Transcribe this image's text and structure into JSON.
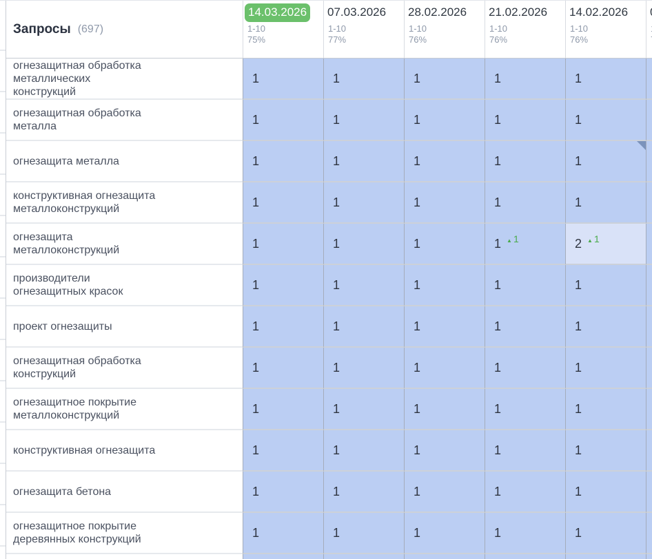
{
  "header": {
    "title": "Запросы",
    "count": "(697)"
  },
  "columns": [
    {
      "date": "14.03.2026",
      "selected": true,
      "range": "1-10",
      "percent": "75%"
    },
    {
      "date": "07.03.2026",
      "selected": false,
      "range": "1-10",
      "percent": "77%"
    },
    {
      "date": "28.02.2026",
      "selected": false,
      "range": "1-10",
      "percent": "76%"
    },
    {
      "date": "21.02.2026",
      "selected": false,
      "range": "1-10",
      "percent": "76%"
    },
    {
      "date": "14.02.2026",
      "selected": false,
      "range": "1-10",
      "percent": "76%"
    }
  ],
  "partial_column": {
    "date_fragment": "0",
    "range_fragment": "1",
    "percent_fragment": "7"
  },
  "rows": [
    {
      "keyword": "огнезащитная обработка\nметаллических\nконструкций",
      "cells": [
        {
          "value": "1"
        },
        {
          "value": "1"
        },
        {
          "value": "1"
        },
        {
          "value": "1"
        },
        {
          "value": "1"
        }
      ]
    },
    {
      "keyword": "огнезащитная обработка\nметалла",
      "cells": [
        {
          "value": "1"
        },
        {
          "value": "1"
        },
        {
          "value": "1"
        },
        {
          "value": "1"
        },
        {
          "value": "1"
        }
      ]
    },
    {
      "keyword": "огнезащита металла",
      "cells": [
        {
          "value": "1"
        },
        {
          "value": "1"
        },
        {
          "value": "1"
        },
        {
          "value": "1"
        },
        {
          "value": "1",
          "note": true
        }
      ]
    },
    {
      "keyword": "конструктивная огнезащита\nметаллоконструкций",
      "cells": [
        {
          "value": "1"
        },
        {
          "value": "1"
        },
        {
          "value": "1"
        },
        {
          "value": "1"
        },
        {
          "value": "1"
        }
      ]
    },
    {
      "keyword": "огнезащита\nметаллоконструкций",
      "cells": [
        {
          "value": "1"
        },
        {
          "value": "1"
        },
        {
          "value": "1"
        },
        {
          "value": "1",
          "delta": "1"
        },
        {
          "value": "2",
          "delta": "1",
          "light": true
        }
      ]
    },
    {
      "keyword": "производители\nогнезащитных красок",
      "cells": [
        {
          "value": "1"
        },
        {
          "value": "1"
        },
        {
          "value": "1"
        },
        {
          "value": "1"
        },
        {
          "value": "1"
        }
      ]
    },
    {
      "keyword": "проект огнезащиты",
      "cells": [
        {
          "value": "1"
        },
        {
          "value": "1"
        },
        {
          "value": "1"
        },
        {
          "value": "1"
        },
        {
          "value": "1"
        }
      ]
    },
    {
      "keyword": "огнезащитная обработка\nконструкций",
      "cells": [
        {
          "value": "1"
        },
        {
          "value": "1"
        },
        {
          "value": "1"
        },
        {
          "value": "1"
        },
        {
          "value": "1"
        }
      ]
    },
    {
      "keyword": "огнезащитное покрытие\nметаллоконструкций",
      "cells": [
        {
          "value": "1"
        },
        {
          "value": "1"
        },
        {
          "value": "1"
        },
        {
          "value": "1"
        },
        {
          "value": "1"
        }
      ]
    },
    {
      "keyword": "конструктивная огнезащита",
      "cells": [
        {
          "value": "1"
        },
        {
          "value": "1"
        },
        {
          "value": "1"
        },
        {
          "value": "1"
        },
        {
          "value": "1"
        }
      ]
    },
    {
      "keyword": "огнезащита бетона",
      "cells": [
        {
          "value": "1"
        },
        {
          "value": "1"
        },
        {
          "value": "1"
        },
        {
          "value": "1"
        },
        {
          "value": "1"
        }
      ]
    },
    {
      "keyword": "огнезащитное покрытие\nдеревянных конструкций",
      "cells": [
        {
          "value": "1"
        },
        {
          "value": "1"
        },
        {
          "value": "1"
        },
        {
          "value": "1"
        },
        {
          "value": "1"
        }
      ]
    }
  ],
  "icons": {
    "up_arrow": "▲",
    "note_corner": "corner-triangle"
  },
  "colors": {
    "selected_date_bg": "#6bc06b",
    "cell_bg": "#bbcef3",
    "cell_bg_highlight": "#d9e2f8",
    "delta_green": "#4aaa4a",
    "note_corner": "#7b93bc"
  }
}
